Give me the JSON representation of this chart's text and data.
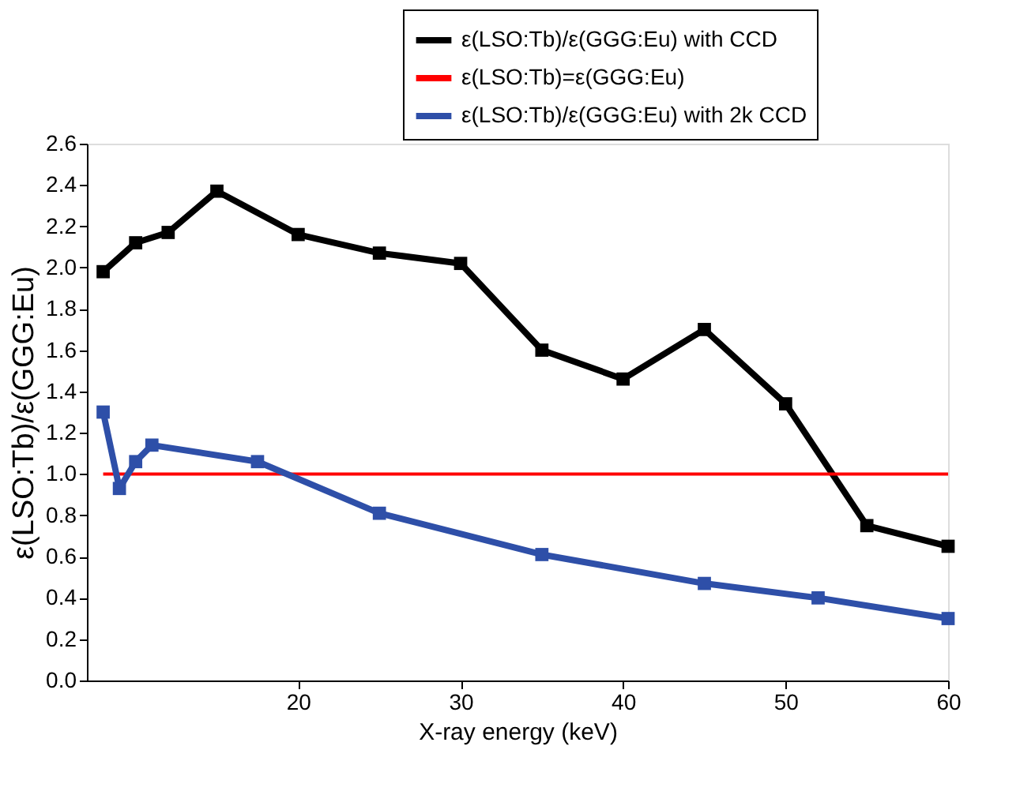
{
  "chart_data": {
    "type": "line",
    "xlabel": "X-ray energy (keV)",
    "ylabel": "ε(LSO:Tb)/ε(GGG:Eu)",
    "xlim": [
      7,
      60
    ],
    "xticks": [
      20,
      30,
      40,
      50,
      60
    ],
    "ylim": [
      0,
      2.6
    ],
    "yticks": [
      {
        "value": 0,
        "label": "0.0"
      },
      0.2,
      0.4,
      0.6,
      0.8,
      {
        "value": 1,
        "label": "1.0"
      },
      1.2,
      1.4,
      1.6,
      1.8,
      {
        "value": 2,
        "label": "2.0"
      },
      2.2,
      2.4,
      2.6
    ],
    "grid": false,
    "legend": "top right",
    "marker": "square",
    "line_style": "solid",
    "series": [
      {
        "name": "ε(LSO:Tb)/ε(GGG:Eu) with CCD",
        "color": "#000000",
        "x": [
          8,
          10,
          12,
          15,
          20,
          25,
          30,
          35,
          40,
          45,
          50,
          55,
          60
        ],
        "values": [
          1.98,
          2.12,
          2.17,
          2.37,
          2.16,
          2.07,
          2.02,
          1.6,
          1.46,
          1.7,
          1.34,
          0.75,
          0.65
        ]
      },
      {
        "name": "ε(LSO:Tb)=ε(GGG:Eu)",
        "color": "#ff0000",
        "marker": "none",
        "x": [
          8,
          60
        ],
        "values": [
          1,
          1
        ]
      },
      {
        "name": "ε(LSO:Tb)/ε(GGG:Eu) with 2k CCD",
        "color": "#2e4fa8",
        "x": [
          8,
          9,
          10,
          11,
          17.5,
          25,
          35,
          45,
          52,
          60
        ],
        "values": [
          1.3,
          0.93,
          1.06,
          1.14,
          1.06,
          0.81,
          0.61,
          0.47,
          0.4,
          0.3
        ]
      }
    ]
  }
}
